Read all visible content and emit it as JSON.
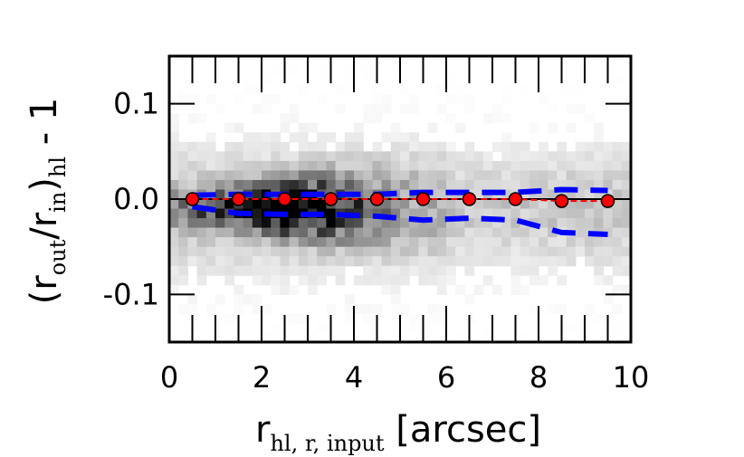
{
  "chart_data": {
    "type": "scatter",
    "subtype": "2d-histogram-with-median-and-percentiles",
    "xlabel": {
      "main": "r",
      "sub": "hl, r, input",
      "suffix": " [arcsec]"
    },
    "ylabel": {
      "prefix": "(r",
      "sub1": "out",
      "mid": "/r",
      "sub2": "in",
      "close": ")",
      "sub3": "hl",
      "suffix": " - 1"
    },
    "xlim": [
      0,
      10
    ],
    "ylim": [
      -0.15,
      0.15
    ],
    "xticks": [
      0,
      2,
      4,
      6,
      8,
      10
    ],
    "xtick_labels": [
      "0",
      "2",
      "4",
      "6",
      "8",
      "10"
    ],
    "yticks": [
      0.1,
      0.0,
      -0.1
    ],
    "ytick_labels": [
      "0.1",
      "0.0",
      "-0.1"
    ],
    "reference_line_y": 0.0,
    "median": {
      "x": [
        0.5,
        1.5,
        2.5,
        3.5,
        4.5,
        5.5,
        6.5,
        7.5,
        8.5,
        9.5
      ],
      "y": [
        0.0,
        0.0,
        0.0,
        0.0,
        0.0,
        0.0,
        0.0,
        0.0,
        -0.002,
        -0.002
      ],
      "color": "#ff0000",
      "marker": "circle"
    },
    "upper_percentile": {
      "x": [
        0.5,
        1.5,
        2.5,
        3.5,
        4.5,
        5.5,
        6.5,
        7.5,
        8.5,
        9.5
      ],
      "y": [
        0.004,
        0.005,
        0.005,
        0.005,
        0.005,
        0.007,
        0.007,
        0.007,
        0.01,
        0.009
      ],
      "color": "#0000ff",
      "style": "dashed"
    },
    "lower_percentile": {
      "x": [
        0.5,
        1.5,
        2.5,
        3.5,
        4.5,
        5.5,
        6.5,
        7.5,
        8.5,
        9.5
      ],
      "y": [
        -0.008,
        -0.015,
        -0.016,
        -0.016,
        -0.018,
        -0.022,
        -0.02,
        -0.022,
        -0.035,
        -0.037
      ],
      "color": "#0000ff",
      "style": "dashed"
    },
    "density_colormap": "gray_r"
  }
}
